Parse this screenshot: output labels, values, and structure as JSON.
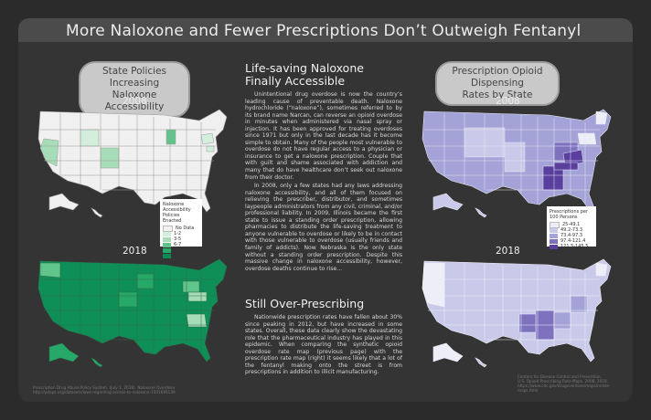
{
  "title": "More Naloxone and Fewer Prescriptions Don’t Outweigh Fentanyl",
  "left_panel": {
    "pill": [
      "State Policies Increasing",
      "Naloxone Accessibility"
    ],
    "year_top": "2008",
    "year_bottom": "2018",
    "legend": {
      "title": [
        "Naloxone",
        "Accessibility",
        "Policies Enacted"
      ],
      "items": [
        {
          "label": "No Data",
          "color": "#f2f2f2"
        },
        {
          "label": "1-2",
          "color": "#d3eedb"
        },
        {
          "label": "3-5",
          "color": "#a6dcb8"
        },
        {
          "label": "6-7",
          "color": "#61c48a"
        },
        {
          "label": "8-10",
          "color": "#26a869"
        },
        {
          "label": "11-13",
          "color": "#0c8a55"
        }
      ]
    },
    "source": [
      "Prescription Drug Abuse Policy System. (July 1, 2018). Naloxone Overdose",
      "http://pdaps.org/datasets/laws-regarding-access-to-naloxone-1501695139"
    ]
  },
  "middle": {
    "heading1": [
      "Life-saving Naloxone",
      "Finally Accessible"
    ],
    "para1": "Unintentional drug overdose is now the country’s leading cause of preventable death. Naloxone hydrochloride (“naloxone”), sometimes referred to by its brand name Narcan, can reverse an opioid overdose in minutes when administered via nasal spray or injection. It has been approved for treating overdoses since 1971 but only in the last decade has it become simple to obtain. Many of the people most vulnerable to overdose do not have regular access to a physician or insurance to get a naloxone prescription. Couple that with guilt and shame associated with addiction and many that do have healthcare don’t seek out naloxone from their doctor.",
    "para2": "In 2008, only a few states had any laws addressing naloxone accessibility, and all of them focused on relieving the prescriber, distributor, and sometimes laypeople administrators from any civil, criminal, and/or professional liability. In 2009, Illinois became the first state to issue a standing order prescription, allowing pharmacies to distribute the life-saving treatment to anyone vulnerable to overdose or likely to be in contact with those vulnerable to overdose (usually friends and family of addicts). Now Nebraska is the only state without a standing order prescription. Despite this massive change in naloxone accessibility, however, overdose deaths continue to rise...",
    "heading2": "Still Over-Prescribing",
    "para3": "Nationwide prescription rates have fallen about 30% since peaking in 2012, but have increased in some states. Overall, these data clearly show the devastating role that the pharmaceutical industry has played in this epidemic. When comparing the synthetic opioid overdose rate map (previous page) with the prescription rate map (right) it seems likely that a lot of the fentanyl making onto the street is from prescriptions in addition to illicit manufacturing."
  },
  "right_panel": {
    "pill": [
      "Prescription Opioid Dispensing",
      "Rates by State"
    ],
    "year_top": "2008",
    "year_bottom": "2018",
    "legend": {
      "title": [
        "Prescriptions per",
        "100 Persons"
      ],
      "items": [
        {
          "label": "25-49.1",
          "color": "#eeeef8"
        },
        {
          "label": "49.2-73.3",
          "color": "#c9c9ea"
        },
        {
          "label": "73.4-97.3",
          "color": "#a3a3d8"
        },
        {
          "label": "97.4-121.4",
          "color": "#7e72bf"
        },
        {
          "label": "121.5-145.5",
          "color": "#5a3f9e"
        }
      ]
    },
    "source": [
      "Centers for Disease Control and Prevention.",
      "U.S. Opioid Prescribing Rate Maps. 2008, 2018.",
      "https://www.cdc.gov/drugoverdose/maps/rxrate-maps.html"
    ]
  },
  "colors": {
    "poster_bg": "#343434",
    "title_bar": "#4b4b4b",
    "green_scale": [
      "#f2f2f2",
      "#d3eedb",
      "#a6dcb8",
      "#61c48a",
      "#26a869",
      "#0c8a55"
    ],
    "purple_scale": [
      "#eeeef8",
      "#c9c9ea",
      "#a3a3d8",
      "#7e72bf",
      "#5a3f9e"
    ]
  }
}
